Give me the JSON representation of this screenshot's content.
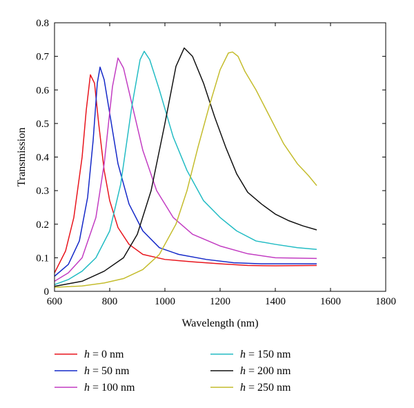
{
  "chart_data": {
    "type": "line",
    "xlabel": "Wavelength (nm)",
    "ylabel": "Transmission",
    "xlim": [
      600,
      1800
    ],
    "ylim": [
      0,
      0.8
    ],
    "xticks": [
      "600",
      "800",
      "1000",
      "1200",
      "1400",
      "1600",
      "1800"
    ],
    "yticks": [
      "0",
      "0.1",
      "0.2",
      "0.3",
      "0.4",
      "0.5",
      "0.6",
      "0.7",
      "0.8"
    ],
    "grid": false,
    "legend_position": "bottom",
    "series": [
      {
        "name": "h = 0 nm",
        "legend_var": "h",
        "legend_rest": " = 0 nm",
        "color": "#e8141c",
        "points": [
          [
            600,
            0.055
          ],
          [
            640,
            0.12
          ],
          [
            670,
            0.22
          ],
          [
            700,
            0.4
          ],
          [
            715,
            0.54
          ],
          [
            730,
            0.645
          ],
          [
            745,
            0.62
          ],
          [
            760,
            0.5
          ],
          [
            780,
            0.36
          ],
          [
            800,
            0.27
          ],
          [
            830,
            0.19
          ],
          [
            870,
            0.14
          ],
          [
            920,
            0.11
          ],
          [
            1000,
            0.095
          ],
          [
            1100,
            0.088
          ],
          [
            1200,
            0.082
          ],
          [
            1300,
            0.077
          ],
          [
            1400,
            0.076
          ],
          [
            1550,
            0.077
          ]
        ]
      },
      {
        "name": "h = 50 nm",
        "legend_var": "h",
        "legend_rest": " = 50 nm",
        "color": "#1428c8",
        "points": [
          [
            600,
            0.045
          ],
          [
            650,
            0.08
          ],
          [
            690,
            0.15
          ],
          [
            720,
            0.28
          ],
          [
            740,
            0.45
          ],
          [
            755,
            0.62
          ],
          [
            765,
            0.668
          ],
          [
            780,
            0.63
          ],
          [
            800,
            0.53
          ],
          [
            830,
            0.38
          ],
          [
            870,
            0.26
          ],
          [
            920,
            0.18
          ],
          [
            980,
            0.13
          ],
          [
            1050,
            0.11
          ],
          [
            1150,
            0.095
          ],
          [
            1250,
            0.085
          ],
          [
            1350,
            0.082
          ],
          [
            1550,
            0.082
          ]
        ]
      },
      {
        "name": "h = 100 nm",
        "legend_var": "h",
        "legend_rest": " = 100 nm",
        "color": "#c23cc2",
        "points": [
          [
            600,
            0.03
          ],
          [
            650,
            0.055
          ],
          [
            700,
            0.1
          ],
          [
            750,
            0.22
          ],
          [
            780,
            0.38
          ],
          [
            810,
            0.61
          ],
          [
            830,
            0.695
          ],
          [
            850,
            0.665
          ],
          [
            880,
            0.56
          ],
          [
            920,
            0.42
          ],
          [
            970,
            0.3
          ],
          [
            1030,
            0.22
          ],
          [
            1100,
            0.17
          ],
          [
            1200,
            0.135
          ],
          [
            1300,
            0.112
          ],
          [
            1400,
            0.1
          ],
          [
            1550,
            0.098
          ]
        ]
      },
      {
        "name": "h = 150 nm",
        "legend_var": "h",
        "legend_rest": " = 150 nm",
        "color": "#22bcc4",
        "points": [
          [
            600,
            0.02
          ],
          [
            650,
            0.035
          ],
          [
            700,
            0.06
          ],
          [
            750,
            0.1
          ],
          [
            800,
            0.18
          ],
          [
            840,
            0.32
          ],
          [
            880,
            0.55
          ],
          [
            910,
            0.69
          ],
          [
            925,
            0.715
          ],
          [
            945,
            0.69
          ],
          [
            980,
            0.6
          ],
          [
            1030,
            0.46
          ],
          [
            1080,
            0.36
          ],
          [
            1140,
            0.27
          ],
          [
            1200,
            0.22
          ],
          [
            1260,
            0.18
          ],
          [
            1330,
            0.15
          ],
          [
            1400,
            0.14
          ],
          [
            1480,
            0.13
          ],
          [
            1550,
            0.125
          ]
        ]
      },
      {
        "name": "h = 200 nm",
        "legend_var": "h",
        "legend_rest": " = 200 nm",
        "color": "#111111",
        "points": [
          [
            600,
            0.015
          ],
          [
            700,
            0.03
          ],
          [
            780,
            0.06
          ],
          [
            850,
            0.1
          ],
          [
            900,
            0.17
          ],
          [
            950,
            0.3
          ],
          [
            1000,
            0.5
          ],
          [
            1040,
            0.67
          ],
          [
            1070,
            0.725
          ],
          [
            1100,
            0.7
          ],
          [
            1140,
            0.62
          ],
          [
            1180,
            0.52
          ],
          [
            1220,
            0.43
          ],
          [
            1260,
            0.35
          ],
          [
            1300,
            0.295
          ],
          [
            1350,
            0.26
          ],
          [
            1400,
            0.23
          ],
          [
            1450,
            0.21
          ],
          [
            1500,
            0.195
          ],
          [
            1550,
            0.183
          ]
        ]
      },
      {
        "name": "h = 250 nm",
        "legend_var": "h",
        "legend_rest": " = 250 nm",
        "color": "#c4bc2c",
        "points": [
          [
            600,
            0.012
          ],
          [
            700,
            0.016
          ],
          [
            780,
            0.025
          ],
          [
            850,
            0.038
          ],
          [
            920,
            0.065
          ],
          [
            980,
            0.11
          ],
          [
            1040,
            0.2
          ],
          [
            1080,
            0.3
          ],
          [
            1120,
            0.43
          ],
          [
            1160,
            0.55
          ],
          [
            1200,
            0.66
          ],
          [
            1230,
            0.71
          ],
          [
            1245,
            0.713
          ],
          [
            1265,
            0.7
          ],
          [
            1290,
            0.655
          ],
          [
            1330,
            0.6
          ],
          [
            1380,
            0.52
          ],
          [
            1430,
            0.44
          ],
          [
            1480,
            0.38
          ],
          [
            1520,
            0.345
          ],
          [
            1550,
            0.315
          ]
        ]
      }
    ]
  }
}
